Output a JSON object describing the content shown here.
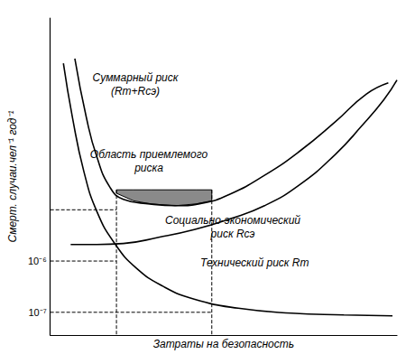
{
  "chart_data": {
    "type": "line",
    "x_label": "Затраты на безопасность",
    "y_label": "Смерт. случаи.чел⁻¹ год⁻¹",
    "log": "y",
    "grid": false,
    "tick_labels": "y",
    "xlim": [
      0,
      100
    ],
    "ylim": [
      3.6e-08,
      0.055
    ],
    "yticks": [
      {
        "value": 1e-07,
        "label": "10⁻⁷"
      },
      {
        "value": 1e-06,
        "label": "10⁻⁶"
      }
    ],
    "series": [
      {
        "name": "Суммарный риск\n(Rт+Rсэ)",
        "color": "#000000",
        "line_style": "solid",
        "x": [
          7.1,
          10.4,
          13.5,
          17.3,
          21.1,
          28.8,
          36.4,
          44.0,
          51.7,
          61.8,
          72.0,
          82.2,
          91.1,
          97.5
        ],
        "values": [
          0.0089,
          0.00064,
          0.000105,
          2.7e-05,
          1.6e-05,
          1.3e-05,
          1.2e-05,
          1.35e-05,
          2e-05,
          4.7e-05,
          0.00014,
          0.00052,
          0.0018,
          0.003
        ]
      },
      {
        "name": "Социально-экономический\nриск Rсэ",
        "color": "#000000",
        "line_style": "solid",
        "x": [
          5.9,
          13.5,
          21.1,
          31.3,
          41.5,
          51.7,
          61.8,
          72.0,
          82.2,
          89.8,
          96.2,
          100
        ],
        "values": [
          2.1e-06,
          2.1e-06,
          2.2e-06,
          2.9e-06,
          4.1e-06,
          6.6e-06,
          1.2e-05,
          3.1e-05,
          0.00012,
          0.00043,
          0.0014,
          0.0034
        ]
      },
      {
        "name": "Технический риск Rт",
        "color": "#000000",
        "line_style": "solid",
        "x": [
          3.8,
          6.4,
          9.7,
          13.5,
          18.6,
          24.9,
          32.6,
          41.5,
          54.2,
          69.5,
          84.7,
          98.7
        ],
        "values": [
          0.0072,
          0.00064,
          5.6e-05,
          9.1e-06,
          2.2e-06,
          7.2e-07,
          3.2e-07,
          1.8e-07,
          1.2e-07,
          9.6e-08,
          8.9e-08,
          8.5e-08
        ]
      }
    ],
    "acceptable_region": {
      "label": "Область приемлемого\nриска",
      "color": "#8a8a8a",
      "x": [
        19.1,
        24,
        29,
        36,
        42,
        46.6
      ],
      "top": [
        2.45e-05,
        2.45e-05,
        2.45e-05,
        2.45e-05,
        2.45e-05,
        2.45e-05
      ],
      "bottom": [
        2.1e-05,
        1.5e-05,
        1.3e-05,
        1.2e-05,
        1.3e-05,
        1.5e-05
      ]
    },
    "guides": {
      "color": "#000000",
      "line_style": "dashed",
      "lines": [
        {
          "x": [
            0,
            19.1
          ],
          "y": [
            1e-05,
            1e-05
          ]
        },
        {
          "x": [
            0,
            19.1
          ],
          "y": [
            1e-06,
            1e-06
          ]
        },
        {
          "x": [
            0,
            46.6
          ],
          "y": [
            1e-07,
            1e-07
          ]
        },
        {
          "x": [
            19.1,
            19.1
          ],
          "y": [
            2.45e-05,
            3.6e-08
          ]
        },
        {
          "x": [
            46.6,
            46.6
          ],
          "y": [
            2.45e-05,
            3.6e-08
          ]
        }
      ]
    }
  }
}
